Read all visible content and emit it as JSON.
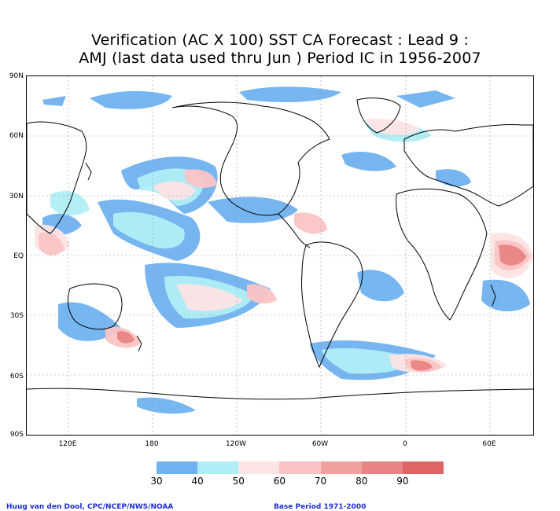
{
  "title": {
    "line1": "Verification (AC X 100) SST CA Forecast : Lead 9 :",
    "line2": "AMJ (last data used thru Jun ) Period IC in 1956-2007"
  },
  "map": {
    "lat_labels": [
      "90N",
      "60N",
      "30N",
      "EQ",
      "30S",
      "60S",
      "90S"
    ],
    "lon_labels": [
      "120E",
      "180",
      "120W",
      "60W",
      "0",
      "60E"
    ],
    "grid": true
  },
  "legend": {
    "colors": [
      "#6fb2f0",
      "#b0eef6",
      "#fde4e4",
      "#fbc4c4",
      "#f1a0a0",
      "#e98484",
      "#e06464"
    ],
    "labels": [
      "30",
      "40",
      "50",
      "60",
      "70",
      "80",
      "90"
    ]
  },
  "credits": {
    "left": "Huug van den Dool, CPC/NCEP/NWS/NOAA",
    "right": "Base Period 1971-2000"
  }
}
